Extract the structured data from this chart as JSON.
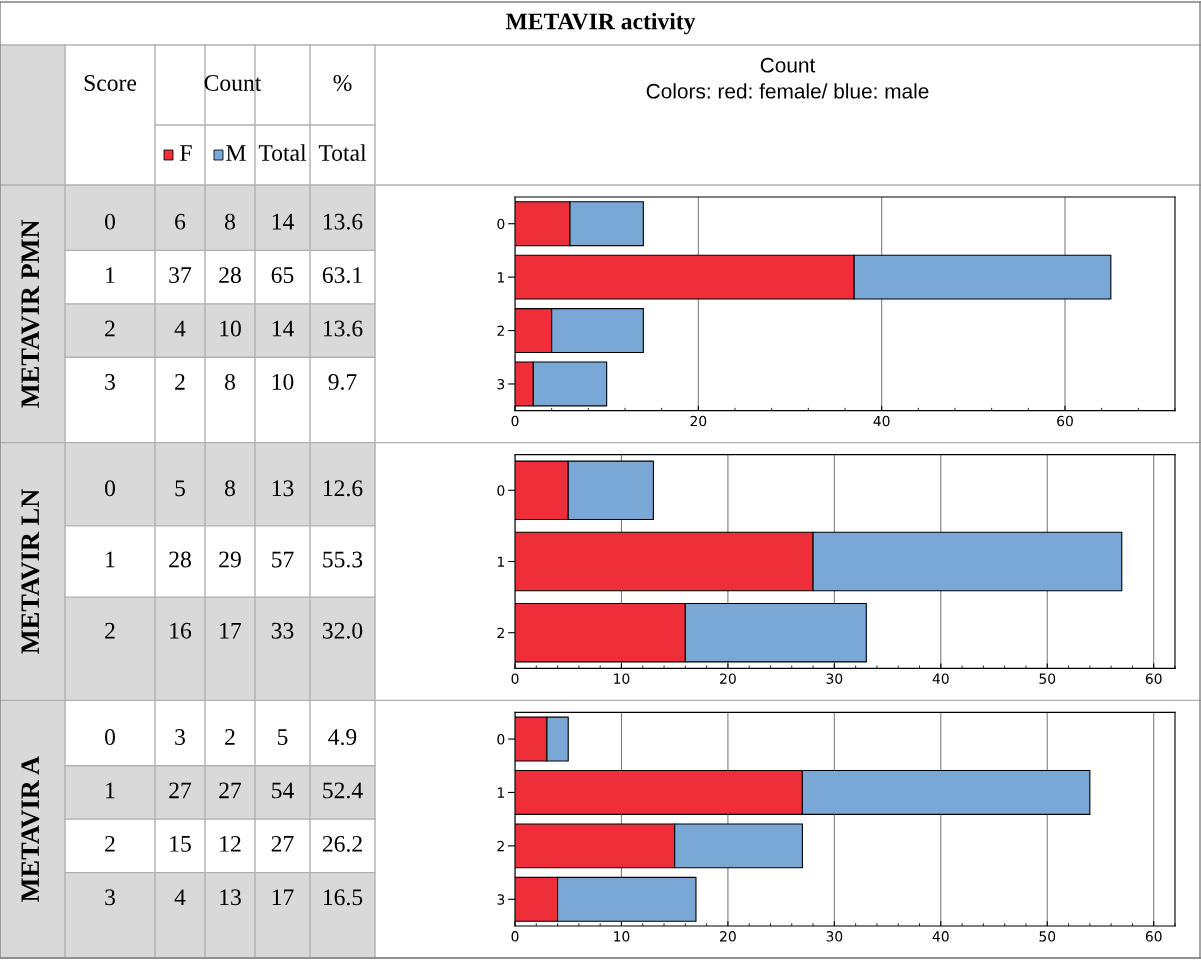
{
  "chart_data": [
    {
      "type": "bar",
      "orientation": "horizontal",
      "stacked": true,
      "title": "METAVIR activity",
      "xlabel": "Count",
      "subtitle": "Colors: red: female/ blue: male",
      "ylabel": "METAVIR PMN",
      "categories": [
        "0",
        "1",
        "2",
        "3"
      ],
      "series": [
        {
          "name": "F",
          "color": "#ee2e38",
          "values": [
            6,
            37,
            4,
            2
          ]
        },
        {
          "name": "M",
          "color": "#7aa8d6",
          "values": [
            8,
            28,
            10,
            8
          ]
        }
      ],
      "xlim": [
        0,
        72
      ],
      "xticks": [
        0,
        20,
        40,
        60
      ],
      "grid": "x",
      "data_labels": true,
      "legend": "top left",
      "annotations": [
        "Score",
        "Count",
        "%",
        "Total",
        "Total",
        "14",
        "65",
        "14",
        "10",
        "13.6",
        "63.1",
        "13.6",
        "9.7"
      ]
    },
    {
      "type": "bar",
      "orientation": "horizontal",
      "stacked": true,
      "ylabel": "METAVIR LN",
      "categories": [
        "0",
        "1",
        "2"
      ],
      "series": [
        {
          "color": "#ee2e38",
          "values": [
            5,
            28,
            16
          ]
        },
        {
          "color": "#7aa8d6",
          "values": [
            8,
            29,
            17
          ]
        }
      ],
      "xlim": [
        0,
        62
      ],
      "xticks": [
        0,
        10,
        20,
        30,
        40,
        50,
        60
      ],
      "grid": "x",
      "data_labels": true,
      "annotations": [
        "13",
        "57",
        "33",
        "12.6",
        "55.3",
        "32.0"
      ]
    },
    {
      "type": "bar",
      "orientation": "horizontal",
      "stacked": true,
      "ylabel": "METAVIR A",
      "categories": [
        "0",
        "1",
        "2",
        "3"
      ],
      "series": [
        {
          "color": "#ee2e38",
          "values": [
            3,
            27,
            15,
            4
          ]
        },
        {
          "color": "#7aa8d6",
          "values": [
            2,
            27,
            12,
            13
          ]
        }
      ],
      "xlim": [
        0,
        62
      ],
      "xticks": [
        0,
        10,
        20,
        30,
        40,
        50,
        60
      ],
      "grid": "x",
      "data_labels": true,
      "annotations": [
        "5",
        "54",
        "27",
        "17",
        "4.9",
        "52.4",
        "26.2",
        "16.5"
      ]
    }
  ]
}
